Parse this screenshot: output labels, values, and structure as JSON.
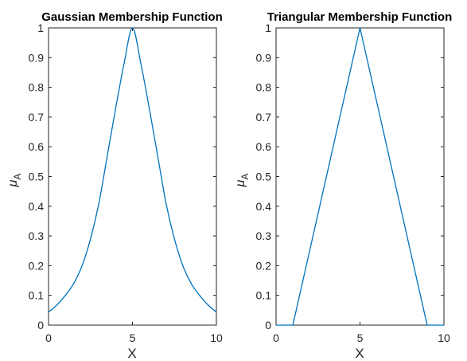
{
  "chart_data": [
    {
      "type": "line",
      "title": "Gaussian Membership Function",
      "xlabel": "X",
      "ylabel": {
        "main": "μ",
        "sub": "A"
      },
      "xlim": [
        0,
        10
      ],
      "ylim": [
        0,
        1
      ],
      "xticks": [
        "0",
        "5",
        "10"
      ],
      "yticks": [
        "0",
        "0.1",
        "0.2",
        "0.3",
        "0.4",
        "0.5",
        "0.6",
        "0.7",
        "0.8",
        "0.9",
        "1"
      ],
      "grid": false,
      "series": [
        {
          "color": "#0072bd",
          "x": [
            0,
            0.5,
            1,
            1.5,
            2,
            2.5,
            3,
            3.5,
            4,
            4.5,
            5,
            5.5,
            6,
            6.5,
            7,
            7.5,
            8,
            8.5,
            9,
            9.5,
            10
          ],
          "y": [
            0.044,
            0.068,
            0.1,
            0.14,
            0.2,
            0.29,
            0.41,
            0.57,
            0.73,
            0.88,
            1,
            0.88,
            0.73,
            0.57,
            0.41,
            0.29,
            0.2,
            0.14,
            0.1,
            0.068,
            0.044
          ]
        }
      ]
    },
    {
      "type": "line",
      "title": "Triangular Membership Function",
      "xlabel": "X",
      "ylabel": {
        "main": "μ",
        "sub": "A"
      },
      "xlim": [
        0,
        10
      ],
      "ylim": [
        0,
        1
      ],
      "xticks": [
        "0",
        "5",
        "10"
      ],
      "yticks": [
        "0",
        "0.1",
        "0.2",
        "0.3",
        "0.4",
        "0.5",
        "0.6",
        "0.7",
        "0.8",
        "0.9",
        "1"
      ],
      "grid": false,
      "series": [
        {
          "color": "#0072bd",
          "x": [
            0,
            1,
            5,
            9,
            10
          ],
          "y": [
            0,
            0,
            1,
            0,
            0
          ]
        }
      ]
    }
  ]
}
